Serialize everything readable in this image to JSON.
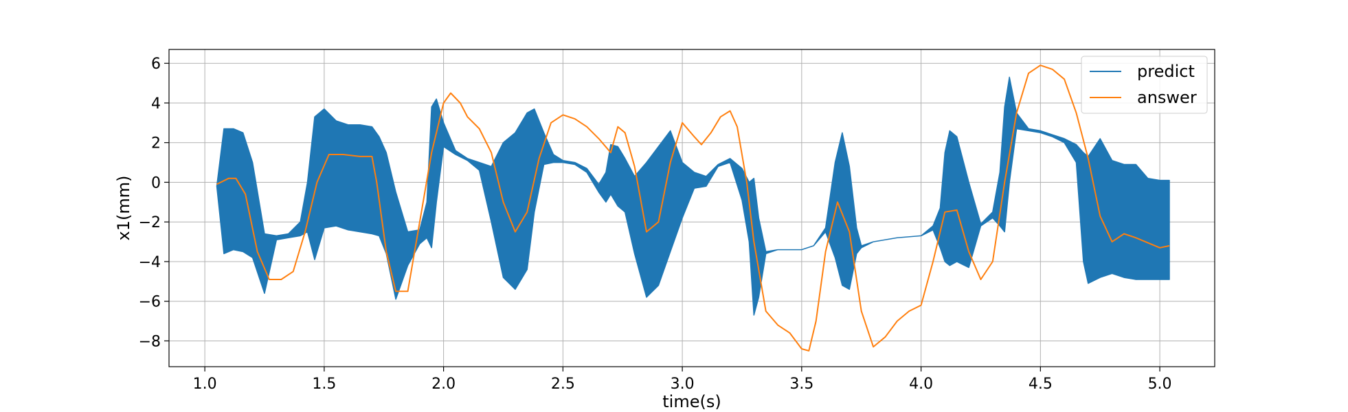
{
  "chart_data": {
    "type": "line",
    "title": "",
    "xlabel": "time(s)",
    "ylabel": "x1(mm)",
    "xlim": [
      0.85,
      5.23
    ],
    "ylim": [
      -9.3,
      6.7
    ],
    "xticks": [
      1.0,
      1.5,
      2.0,
      2.5,
      3.0,
      3.5,
      4.0,
      4.5,
      5.0
    ],
    "xtick_labels": [
      "1.0",
      "1.5",
      "2.0",
      "2.5",
      "3.0",
      "3.5",
      "4.0",
      "4.5",
      "5.0"
    ],
    "yticks": [
      -8,
      -6,
      -4,
      -2,
      0,
      2,
      4,
      6
    ],
    "ytick_labels": [
      "−8",
      "−6",
      "−4",
      "−2",
      "0",
      "2",
      "4",
      "6"
    ],
    "grid": true,
    "legend_position": "top-right",
    "series": [
      {
        "name": "predict",
        "color": "#1f77b4",
        "style": "band",
        "x": [
          1.05,
          1.08,
          1.12,
          1.16,
          1.2,
          1.25,
          1.3,
          1.35,
          1.4,
          1.43,
          1.46,
          1.5,
          1.55,
          1.6,
          1.65,
          1.7,
          1.73,
          1.76,
          1.8,
          1.85,
          1.9,
          1.93,
          1.95,
          1.97,
          2.0,
          2.05,
          2.1,
          2.15,
          2.2,
          2.25,
          2.3,
          2.35,
          2.38,
          2.42,
          2.46,
          2.5,
          2.55,
          2.6,
          2.65,
          2.68,
          2.7,
          2.73,
          2.76,
          2.8,
          2.85,
          2.9,
          2.95,
          3.0,
          3.05,
          3.1,
          3.15,
          3.2,
          3.25,
          3.28,
          3.3,
          3.32,
          3.35,
          3.4,
          3.5,
          3.55,
          3.6,
          3.64,
          3.67,
          3.7,
          3.73,
          3.75,
          3.8,
          3.9,
          4.0,
          4.05,
          4.08,
          4.1,
          4.12,
          4.15,
          4.2,
          4.25,
          4.3,
          4.33,
          4.35,
          4.37,
          4.4,
          4.45,
          4.5,
          4.55,
          4.6,
          4.65,
          4.68,
          4.7,
          4.75,
          4.8,
          4.85,
          4.9,
          4.95,
          5.0,
          5.04
        ],
        "upper": [
          -0.2,
          2.7,
          2.7,
          2.5,
          1.0,
          -2.6,
          -2.7,
          -2.6,
          -2.0,
          0.0,
          3.3,
          3.7,
          3.1,
          2.9,
          2.9,
          2.8,
          2.3,
          1.5,
          -0.5,
          -2.5,
          -2.4,
          -1.0,
          3.8,
          4.2,
          3.0,
          1.6,
          1.2,
          1.0,
          0.8,
          2.0,
          2.5,
          3.5,
          3.7,
          2.5,
          1.4,
          1.1,
          1.0,
          0.7,
          -0.1,
          0.5,
          1.9,
          1.8,
          1.2,
          0.3,
          1.0,
          1.8,
          2.6,
          1.0,
          0.5,
          0.3,
          0.9,
          1.2,
          0.7,
          0.0,
          0.2,
          -1.8,
          -3.5,
          -3.4,
          -3.4,
          -3.2,
          -2.3,
          1.0,
          2.5,
          0.8,
          -2.3,
          -3.2,
          -3.0,
          -2.8,
          -2.7,
          -2.2,
          -1.3,
          1.5,
          2.6,
          2.3,
          0.0,
          -2.1,
          -1.5,
          0.5,
          3.8,
          5.3,
          3.5,
          2.7,
          2.6,
          2.4,
          2.2,
          1.9,
          1.5,
          1.3,
          2.2,
          1.1,
          0.9,
          0.9,
          0.2,
          0.1,
          0.1
        ],
        "lower": [
          -0.2,
          -3.6,
          -3.4,
          -3.5,
          -3.8,
          -5.6,
          -2.9,
          -2.8,
          -2.7,
          -2.5,
          -3.9,
          -2.3,
          -2.2,
          -2.4,
          -2.5,
          -2.6,
          -2.7,
          -3.6,
          -5.9,
          -4.2,
          -3.1,
          -2.8,
          -3.3,
          -1.0,
          1.8,
          1.4,
          1.1,
          0.6,
          -2.0,
          -4.8,
          -5.4,
          -4.4,
          -1.5,
          0.9,
          1.0,
          1.0,
          0.9,
          0.5,
          -0.5,
          -1.0,
          -0.6,
          -1.2,
          -1.5,
          -3.6,
          -5.8,
          -5.2,
          -3.5,
          -1.8,
          -0.3,
          -0.2,
          0.8,
          1.0,
          -0.9,
          -3.0,
          -6.7,
          -5.8,
          -3.6,
          -3.4,
          -3.4,
          -3.2,
          -2.5,
          -3.8,
          -5.2,
          -5.4,
          -3.6,
          -3.3,
          -3.0,
          -2.8,
          -2.7,
          -2.4,
          -3.3,
          -4.0,
          -4.2,
          -4.0,
          -4.3,
          -2.2,
          -1.8,
          -2.2,
          -2.5,
          0.0,
          2.7,
          2.6,
          2.5,
          2.3,
          2.0,
          1.0,
          -4.0,
          -5.1,
          -4.8,
          -4.6,
          -4.8,
          -4.9,
          -4.9,
          -4.9,
          -4.9
        ]
      },
      {
        "name": "answer",
        "color": "#ff7f0e",
        "style": "line",
        "x": [
          1.05,
          1.1,
          1.13,
          1.17,
          1.22,
          1.27,
          1.32,
          1.37,
          1.42,
          1.47,
          1.52,
          1.58,
          1.65,
          1.7,
          1.72,
          1.76,
          1.8,
          1.85,
          1.9,
          1.95,
          2.0,
          2.03,
          2.07,
          2.1,
          2.15,
          2.2,
          2.25,
          2.3,
          2.35,
          2.4,
          2.45,
          2.5,
          2.55,
          2.6,
          2.65,
          2.7,
          2.73,
          2.76,
          2.8,
          2.85,
          2.9,
          2.95,
          3.0,
          3.05,
          3.08,
          3.12,
          3.16,
          3.2,
          3.23,
          3.27,
          3.3,
          3.35,
          3.4,
          3.45,
          3.5,
          3.53,
          3.56,
          3.6,
          3.65,
          3.7,
          3.75,
          3.8,
          3.85,
          3.9,
          3.95,
          4.0,
          4.05,
          4.1,
          4.15,
          4.2,
          4.25,
          4.3,
          4.35,
          4.4,
          4.45,
          4.5,
          4.55,
          4.6,
          4.65,
          4.7,
          4.75,
          4.8,
          4.85,
          4.9,
          5.0,
          5.04
        ],
        "y": [
          -0.1,
          0.2,
          0.2,
          -0.6,
          -3.5,
          -4.9,
          -4.9,
          -4.5,
          -2.5,
          0.0,
          1.4,
          1.4,
          1.3,
          1.3,
          0.0,
          -3.5,
          -5.5,
          -5.5,
          -2.0,
          1.5,
          4.0,
          4.5,
          4.0,
          3.3,
          2.7,
          1.5,
          -1.0,
          -2.5,
          -1.5,
          1.2,
          3.0,
          3.4,
          3.2,
          2.8,
          2.2,
          1.5,
          2.8,
          2.5,
          0.8,
          -2.5,
          -2.0,
          1.0,
          3.0,
          2.3,
          1.9,
          2.5,
          3.3,
          3.6,
          2.8,
          0.0,
          -3.0,
          -6.5,
          -7.2,
          -7.6,
          -8.4,
          -8.5,
          -7.0,
          -3.5,
          -1.0,
          -2.5,
          -6.5,
          -8.3,
          -7.8,
          -7.0,
          -6.5,
          -6.2,
          -4.0,
          -1.5,
          -1.4,
          -3.5,
          -4.9,
          -4.0,
          0.0,
          3.5,
          5.5,
          5.9,
          5.7,
          5.2,
          3.5,
          1.2,
          -1.7,
          -3.0,
          -2.6,
          -2.8,
          -3.3,
          -3.2
        ]
      }
    ]
  }
}
